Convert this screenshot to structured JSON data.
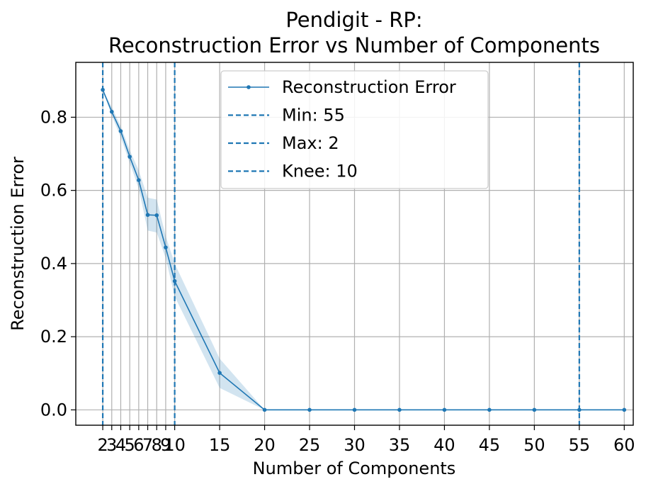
{
  "chart_data": {
    "type": "line",
    "title_line1": "Pendigit - RP:",
    "title_line2": "Reconstruction Error vs Number of Components",
    "xlabel": "Number of Components",
    "ylabel": "Reconstruction Error",
    "xlim": [
      -1,
      61
    ],
    "ylim": [
      -0.042,
      0.95
    ],
    "grid": true,
    "legend_position": "top-center",
    "x_ticks": [
      2,
      3,
      4,
      5,
      6,
      7,
      8,
      9,
      10,
      15,
      20,
      25,
      30,
      35,
      40,
      45,
      50,
      55,
      60
    ],
    "x_tick_labels": [
      "2",
      "3",
      "4",
      "5",
      "6",
      "7",
      "8",
      "9",
      "10",
      "15",
      "20",
      "25",
      "30",
      "35",
      "40",
      "45",
      "50",
      "55",
      "60"
    ],
    "y_ticks": [
      0.0,
      0.2,
      0.4,
      0.6,
      0.8
    ],
    "y_tick_labels": [
      "0.0",
      "0.2",
      "0.4",
      "0.6",
      "0.8"
    ],
    "series": [
      {
        "name": "Reconstruction Error",
        "color": "#1f77b4",
        "x": [
          2,
          3,
          4,
          5,
          6,
          7,
          8,
          9,
          10,
          15,
          20,
          25,
          30,
          35,
          40,
          45,
          50,
          55,
          60
        ],
        "y": [
          0.875,
          0.815,
          0.762,
          0.692,
          0.628,
          0.533,
          0.532,
          0.444,
          0.352,
          0.101,
          0.0,
          0.0,
          0.0,
          0.0,
          0.0,
          0.0,
          0.0,
          0.0,
          0.0
        ],
        "band_lower": [
          0.875,
          0.805,
          0.745,
          0.675,
          0.605,
          0.49,
          0.485,
          0.415,
          0.31,
          0.06,
          0.0,
          0.0,
          0.0,
          0.0,
          0.0,
          0.0,
          0.0,
          0.0,
          0.0
        ],
        "band_upper": [
          0.875,
          0.828,
          0.775,
          0.71,
          0.655,
          0.58,
          0.575,
          0.475,
          0.4,
          0.14,
          0.0,
          0.0,
          0.0,
          0.0,
          0.0,
          0.0,
          0.0,
          0.0,
          0.0
        ]
      }
    ],
    "vlines": [
      {
        "name": "Min: 55",
        "x": 55,
        "color": "#1f77b4"
      },
      {
        "name": "Max: 2",
        "x": 2,
        "color": "#1f77b4"
      },
      {
        "name": "Knee: 10",
        "x": 10,
        "color": "#1f77b4"
      }
    ]
  }
}
